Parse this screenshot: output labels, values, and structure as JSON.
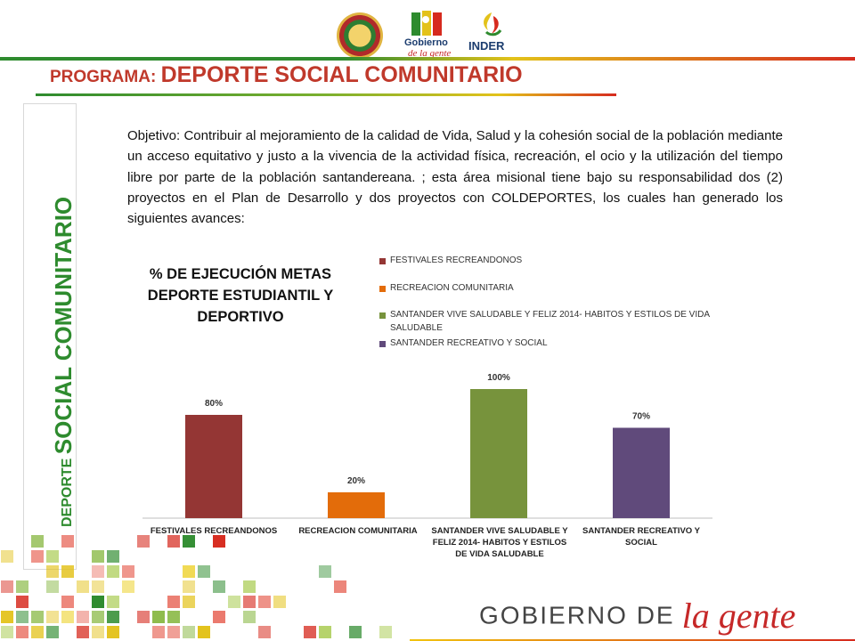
{
  "header": {
    "logos": {
      "gobierno_line1": "Gobierno",
      "gobierno_line2": "de la gente",
      "inder": "INDER"
    },
    "program_label": "PROGRAMA: ",
    "program_name": "DEPORTE SOCIAL COMUNITARIO"
  },
  "side_label": {
    "small": "DEPORTE",
    "big": "SOCIAL COMUNITARIO"
  },
  "objective_text": "Objetivo: Contribuir al mejoramiento de la calidad de Vida, Salud y la cohesión social de la población mediante un acceso equitativo y justo a la vivencia de la actividad física, recreación, el ocio y la utilización del tiempo libre por parte de la población santandereana. ; esta área misional tiene bajo su responsabilidad dos (2) proyectos en el Plan de Desarrollo y dos proyectos con COLDEPORTES, los cuales han generado los siguientes avances:",
  "chart_data": {
    "type": "bar",
    "title": "% DE EJECUCIÓN METAS DEPORTE ESTUDIANTIL Y DEPORTIVO",
    "categories": [
      "FESTIVALES RECREANDONOS",
      "RECREACION COMUNITARIA",
      "SANTANDER VIVE SALUDABLE Y FELIZ 2014- HABITOS Y ESTILOS DE VIDA SALUDABLE",
      "SANTANDER RECREATIVO Y SOCIAL"
    ],
    "values": [
      80,
      20,
      100,
      70
    ],
    "value_labels": [
      "80%",
      "20%",
      "100%",
      "70%"
    ],
    "colors": [
      "#943634",
      "#e36c0a",
      "#77933c",
      "#604a7b"
    ],
    "legend": [
      "FESTIVALES RECREANDONOS",
      "RECREACION COMUNITARIA",
      "SANTANDER VIVE SALUDABLE Y FELIZ 2014- HABITOS Y ESTILOS DE VIDA SALUDABLE",
      "SANTANDER RECREATIVO Y SOCIAL"
    ],
    "legend_position": "top-right",
    "ylim": [
      0,
      100
    ],
    "grid": false,
    "xlabel": "",
    "ylabel": ""
  },
  "footer": {
    "gob": "GOBIERNO DE",
    "gente": "la gente"
  },
  "colors": {
    "title_red": "#c0392b",
    "side_green": "#2e8b2e"
  }
}
